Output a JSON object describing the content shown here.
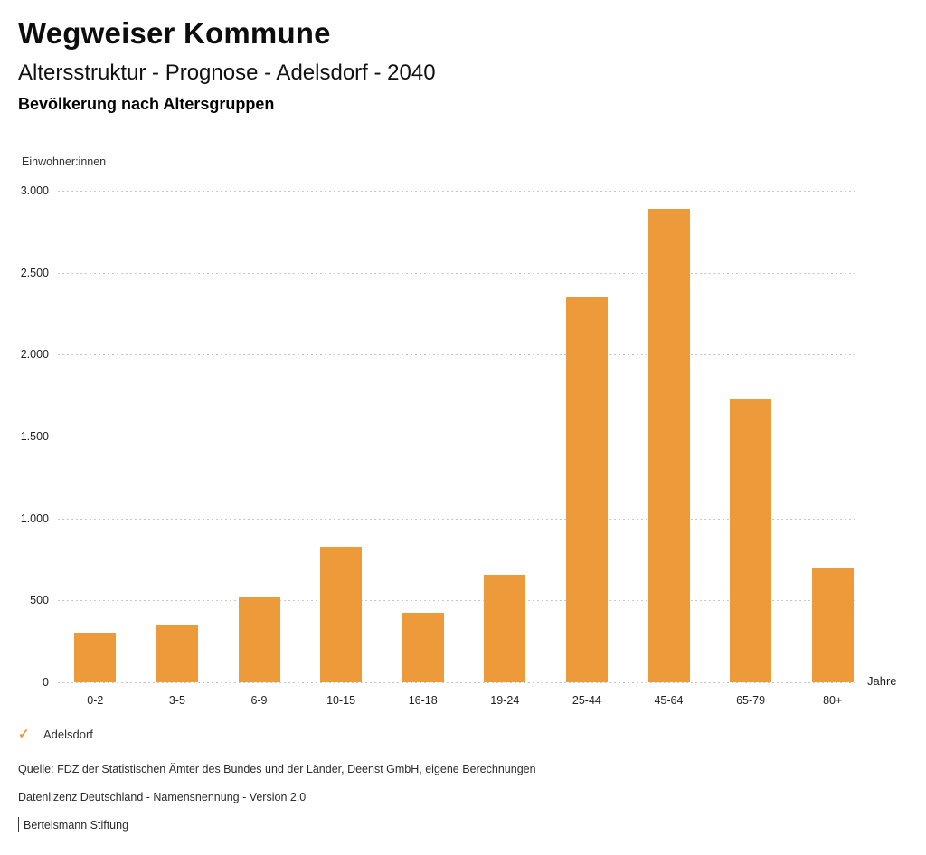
{
  "header": {
    "title": "Wegweiser Kommune",
    "subtitle": "Altersstruktur - Prognose - Adelsdorf - 2040",
    "section_title": "Bevölkerung nach Altersgruppen"
  },
  "chart_data": {
    "type": "bar",
    "title": "Bevölkerung nach Altersgruppen",
    "categories": [
      "0-2",
      "3-5",
      "6-9",
      "10-15",
      "16-18",
      "19-24",
      "25-44",
      "45-64",
      "65-79",
      "80+"
    ],
    "series": [
      {
        "name": "Adelsdorf",
        "values": [
          305,
          350,
          525,
          830,
          425,
          655,
          2350,
          2890,
          1725,
          700
        ]
      }
    ],
    "xlabel": "Jahre",
    "ylabel": "Einwohner:innen",
    "ylim": [
      0,
      3000
    ],
    "ytick_step": 500,
    "ytick_labels": [
      "0",
      "500",
      "1.000",
      "1.500",
      "2.000",
      "2.500",
      "3.000"
    ],
    "grid": "dotted horizontal",
    "legend_position": "bottom-left",
    "bar_color": "#EC9A3A"
  },
  "legend": {
    "marker": "✓",
    "marker_color": "#EC9A3A",
    "label": "Adelsdorf"
  },
  "footer": {
    "source": "Quelle: FDZ der Statistischen Ämter des Bundes und der Länder, Deenst GmbH, eigene Berechnungen",
    "license": "Datenlizenz Deutschland - Namensnennung - Version 2.0",
    "attribution": "Bertelsmann Stiftung"
  }
}
